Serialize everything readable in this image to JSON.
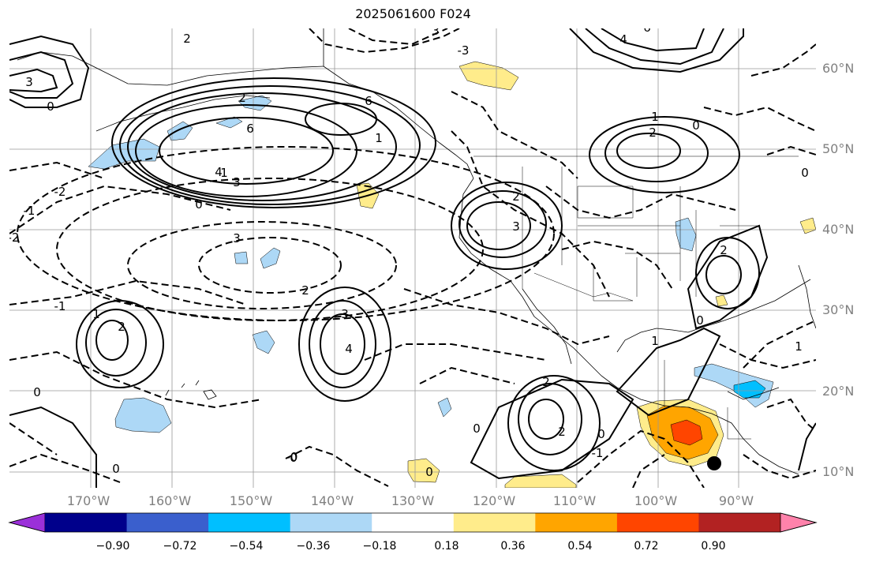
{
  "title": "2025061600 F024",
  "longitude_labels": [
    "170°W",
    "160°W",
    "150°W",
    "140°W",
    "130°W",
    "120°W",
    "110°W",
    "100°W",
    "90°W"
  ],
  "latitude_labels": [
    "60°N",
    "50°N",
    "40°N",
    "30°N",
    "20°N",
    "10°N"
  ],
  "contour_labels": [
    "0",
    "0",
    "0",
    "0",
    "0",
    "0",
    "0",
    "0",
    "0",
    "0",
    "0",
    "1",
    "1",
    "1",
    "1",
    "1",
    "1",
    "2",
    "2",
    "2",
    "2",
    "2",
    "2",
    "2",
    "2",
    "2",
    "3",
    "3",
    "3",
    "3",
    "3",
    "3",
    "4",
    "4",
    "4",
    "6",
    "6",
    "6",
    "-1",
    "-1",
    "-2",
    "-2",
    "-3",
    "-0",
    "-1"
  ],
  "colorbar": {
    "ticks": [
      "−0.90",
      "−0.72",
      "−0.54",
      "−0.36",
      "−0.18",
      "0.18",
      "0.36",
      "0.54",
      "0.72",
      "0.90"
    ],
    "colors": [
      "#9b30d9",
      "#00008b",
      "#3a5fcd",
      "#00bfff",
      "#add8f6",
      "#ffffff",
      "#ffec8b",
      "#ffa500",
      "#ff4500",
      "#b22222",
      "#ff82ab"
    ]
  }
}
